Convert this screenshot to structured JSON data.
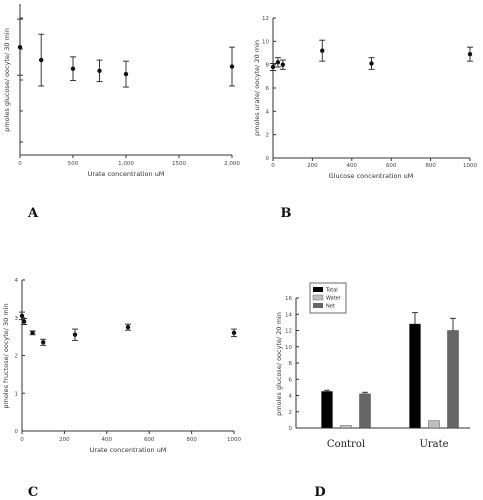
{
  "chart_data": [
    {
      "panel": "A",
      "type": "scatter",
      "xlabel": "Urate concentration uM",
      "ylabel": "pmoles glucose/ oocyte/ 30 min",
      "x_ticks": [
        "0",
        "500",
        "1,000",
        "1500",
        "2,000"
      ],
      "xlim": [
        0,
        2000
      ],
      "ylim": [
        0,
        7
      ],
      "points": [
        {
          "x": 0,
          "y": 5.0,
          "err": 1.3
        },
        {
          "x": 200,
          "y": 4.4,
          "err": 1.2
        },
        {
          "x": 500,
          "y": 4.0,
          "err": 0.55
        },
        {
          "x": 750,
          "y": 3.9,
          "err": 0.5
        },
        {
          "x": 1000,
          "y": 3.75,
          "err": 0.6
        },
        {
          "x": 2000,
          "y": 4.1,
          "err": 0.9
        }
      ]
    },
    {
      "panel": "B",
      "type": "scatter",
      "xlabel": "Glucose concentration uM",
      "ylabel": "pmoles urate/ oocyte/ 20 min",
      "x_ticks": [
        "0",
        "200",
        "400",
        "600",
        "800",
        "1000"
      ],
      "y_ticks": [
        "0",
        "2",
        "4",
        "6",
        "8",
        "10",
        "12"
      ],
      "xlim": [
        0,
        1000
      ],
      "ylim": [
        0,
        12
      ],
      "points": [
        {
          "x": 0,
          "y": 7.8,
          "err": 0.3
        },
        {
          "x": 25,
          "y": 8.2,
          "err": 0.4
        },
        {
          "x": 50,
          "y": 8.0,
          "err": 0.4
        },
        {
          "x": 250,
          "y": 9.2,
          "err": 0.9
        },
        {
          "x": 500,
          "y": 8.1,
          "err": 0.5
        },
        {
          "x": 1000,
          "y": 8.9,
          "err": 0.6
        }
      ]
    },
    {
      "panel": "C",
      "type": "scatter",
      "xlabel": "Urate concentration uM",
      "ylabel": "pmoles fructose/ oocyte/ 30 min",
      "x_ticks": [
        "0",
        "200",
        "400",
        "600",
        "800",
        "1000"
      ],
      "y_ticks": [
        "0",
        "1",
        "2",
        "3",
        "4"
      ],
      "xlim": [
        0,
        1000
      ],
      "ylim": [
        0,
        4
      ],
      "points": [
        {
          "x": 0,
          "y": 3.05,
          "err": 0.1
        },
        {
          "x": 10,
          "y": 2.9,
          "err": 0.08
        },
        {
          "x": 50,
          "y": 2.6,
          "err": 0.05
        },
        {
          "x": 100,
          "y": 2.35,
          "err": 0.08
        },
        {
          "x": 250,
          "y": 2.55,
          "err": 0.15
        },
        {
          "x": 500,
          "y": 2.75,
          "err": 0.08
        },
        {
          "x": 1000,
          "y": 2.6,
          "err": 0.1
        }
      ]
    },
    {
      "panel": "D",
      "type": "bar",
      "ylabel": "pmoles glucose/ oocyte/ 20 min",
      "categories": [
        "Control",
        "Urate"
      ],
      "y_ticks": [
        "0",
        "2",
        "4",
        "6",
        "8",
        "10",
        "12",
        "14",
        "16"
      ],
      "ylim": [
        0,
        16
      ],
      "legend_position": "top-left",
      "series": [
        {
          "name": "Total",
          "color": "#000000",
          "values": [
            4.5,
            12.8
          ],
          "errors": [
            0.15,
            1.4
          ]
        },
        {
          "name": "Water",
          "color": "#bdbdbd",
          "values": [
            0.3,
            0.9
          ],
          "errors": [
            0.05,
            0.1
          ]
        },
        {
          "name": "Net",
          "color": "#666666",
          "values": [
            4.2,
            12.0
          ],
          "errors": [
            0.2,
            1.5
          ]
        }
      ]
    }
  ]
}
